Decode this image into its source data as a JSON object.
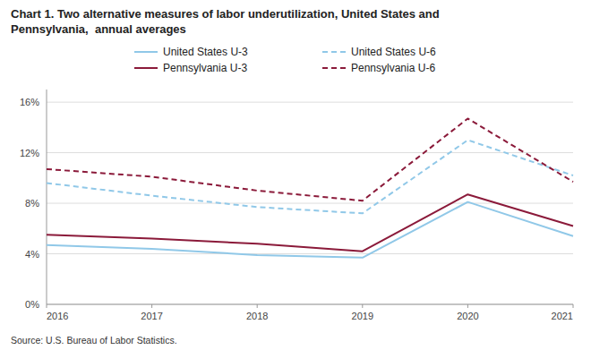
{
  "chart_data": {
    "type": "line",
    "title": "Chart 1. Two alternative measures of labor underutilization, United States and",
    "subtitle": "Pennsylvania,  annual averages",
    "annotations": [
      "Source: U.S. Bureau of Labor Statistics."
    ],
    "x": [
      2016,
      2017,
      2018,
      2019,
      2020,
      2021
    ],
    "xlim": [
      2016,
      2021
    ],
    "xticks": [
      2016,
      2017,
      2018,
      2019,
      2020,
      2021
    ],
    "ylim": [
      0,
      17
    ],
    "yticks": [
      {
        "value": 0,
        "label": "0%"
      },
      {
        "value": 4,
        "label": "4%"
      },
      {
        "value": 8,
        "label": "8%"
      },
      {
        "value": 12,
        "label": "12%"
      },
      {
        "value": 16,
        "label": "16%"
      }
    ],
    "grid": "y",
    "legend": "top",
    "series": [
      {
        "name": "United States U-3",
        "color": "#90C8E8",
        "line_style": "solid",
        "values": [
          4.7,
          4.4,
          3.9,
          3.7,
          8.1,
          5.4
        ]
      },
      {
        "name": "United States U-6",
        "color": "#90C8E8",
        "line_style": "dashed",
        "values": [
          9.6,
          8.6,
          7.7,
          7.2,
          13.0,
          10.2
        ]
      },
      {
        "name": "Pennsylvania U-3",
        "color": "#8B1A3A",
        "line_style": "solid",
        "values": [
          5.5,
          5.2,
          4.8,
          4.2,
          8.7,
          6.2
        ]
      },
      {
        "name": "Pennsylvania U-6",
        "color": "#8B1A3A",
        "line_style": "dashed",
        "values": [
          10.7,
          10.1,
          9.0,
          8.2,
          14.7,
          9.7
        ]
      }
    ]
  }
}
